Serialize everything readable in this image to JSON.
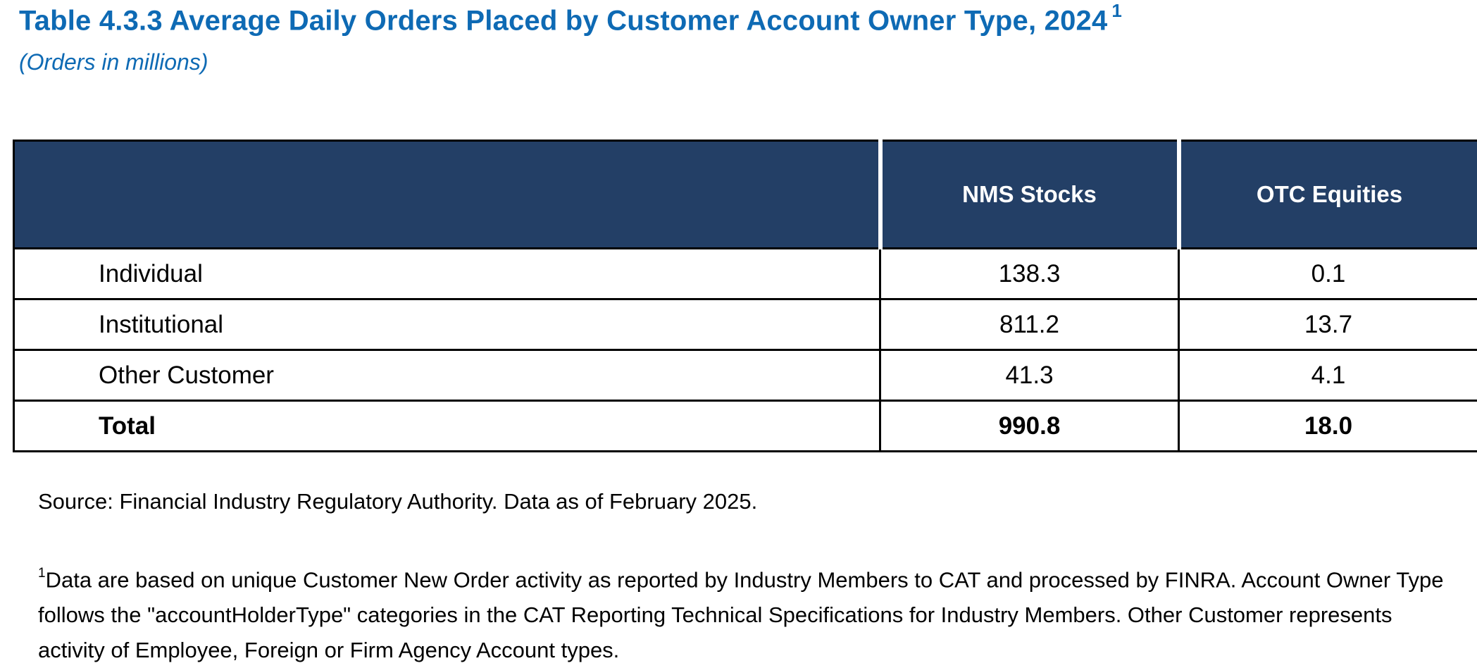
{
  "header": {
    "title": "Table 4.3.3 Average Daily Orders Placed by Customer Account Owner Type, 2024",
    "title_footnote_marker": "1",
    "subtitle": "(Orders in millions)"
  },
  "table": {
    "columns": [
      "",
      "NMS Stocks",
      "OTC Equities"
    ],
    "rows": [
      {
        "label": "Individual",
        "nms": "138.3",
        "otc": "0.1"
      },
      {
        "label": "Institutional",
        "nms": "811.2",
        "otc": "13.7"
      },
      {
        "label": "Other Customer",
        "nms": "41.3",
        "otc": "4.1"
      }
    ],
    "total": {
      "label": "Total",
      "nms": "990.8",
      "otc": "18.0"
    }
  },
  "source": "Source: Financial Industry Regulatory Authority. Data as of February 2025.",
  "footnote": {
    "marker": "1",
    "text": "Data are based on unique Customer New Order activity as reported by Industry Members to CAT and processed by FINRA. Account Owner Type follows the \"accountHolderType\" categories in the CAT Reporting Technical Specifications for Industry Members. Other Customer represents activity of Employee, Foreign or Firm Agency Account types."
  },
  "colors": {
    "title": "#0e6ab4",
    "header_bg": "#233f66",
    "header_text": "#ffffff"
  }
}
